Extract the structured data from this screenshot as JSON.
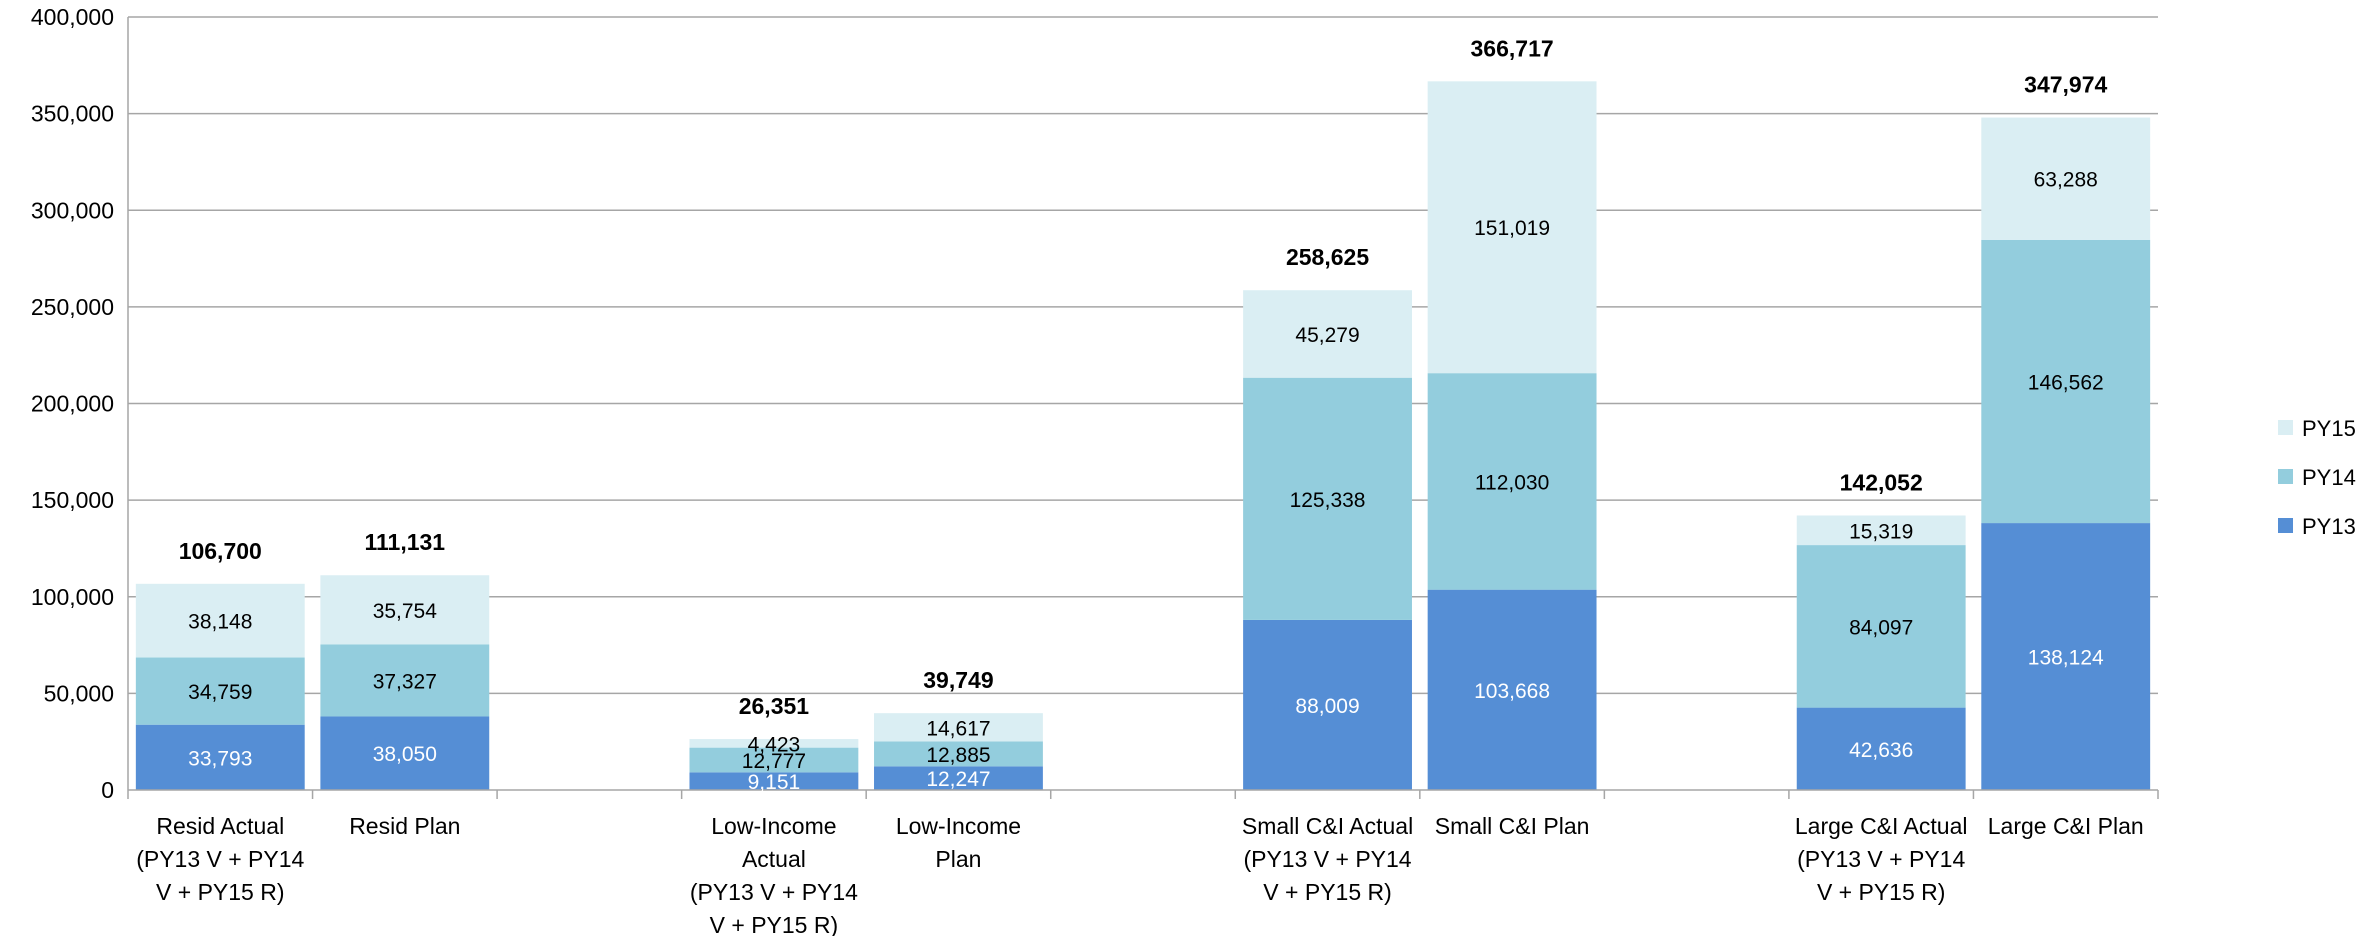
{
  "chart_data": {
    "type": "bar",
    "stacked": true,
    "title": "",
    "xlabel": "",
    "ylabel": "",
    "ylim": [
      0,
      400000
    ],
    "yticks": [
      0,
      50000,
      100000,
      150000,
      200000,
      250000,
      300000,
      350000,
      400000
    ],
    "ytick_labels": [
      "0",
      "50,000",
      "100,000",
      "150,000",
      "200,000",
      "250,000",
      "300,000",
      "350,000",
      "400,000"
    ],
    "grid": true,
    "legend_position": "right",
    "categories": [
      "Resid Actual (PY13 V + PY14 V + PY15 R)",
      "Resid Plan",
      "",
      "Low-Income Actual (PY13 V + PY14 V + PY15 R)",
      "Low-Income Plan",
      "",
      "Small C&I Actual (PY13 V + PY14 V + PY15 R)",
      "Small C&I Plan",
      "",
      "Large C&I Actual (PY13 V + PY14 V + PY15 R)",
      "Large C&I Plan"
    ],
    "category_lines": [
      [
        "Resid Actual",
        "(PY13 V + PY14",
        "V + PY15 R)"
      ],
      [
        "Resid Plan"
      ],
      [],
      [
        "Low-Income",
        "Actual",
        "(PY13 V + PY14",
        "V + PY15 R)"
      ],
      [
        "Low-Income",
        "Plan"
      ],
      [],
      [
        "Small C&I Actual",
        "(PY13 V + PY14",
        "V + PY15 R)"
      ],
      [
        "Small C&I Plan"
      ],
      [],
      [
        "Large C&I Actual",
        "(PY13 V + PY14",
        "V + PY15 R)"
      ],
      [
        "Large C&I Plan"
      ]
    ],
    "series": [
      {
        "name": "PY13",
        "color": "#558ED5",
        "label_color": "#ffffff",
        "values": [
          33793,
          38050,
          null,
          9151,
          12247,
          null,
          88009,
          103668,
          null,
          42636,
          138124
        ],
        "labels": [
          "33,793",
          "38,050",
          "",
          "9,151",
          "12,247",
          "",
          "88,009",
          "103,668",
          "",
          "42,636",
          "138,124"
        ]
      },
      {
        "name": "PY14",
        "color": "#93CDDD",
        "label_color": "#000000",
        "values": [
          34759,
          37327,
          null,
          12777,
          12885,
          null,
          125338,
          112030,
          null,
          84097,
          146562
        ],
        "labels": [
          "34,759",
          "37,327",
          "",
          "12,777",
          "12,885",
          "",
          "125,338",
          "112,030",
          "",
          "84,097",
          "146,562"
        ]
      },
      {
        "name": "PY15",
        "color": "#DAEEF3",
        "label_color": "#000000",
        "values": [
          38148,
          35754,
          null,
          4423,
          14617,
          null,
          45279,
          151019,
          null,
          15319,
          63288
        ],
        "labels": [
          "38,148",
          "35,754",
          "",
          "4,423",
          "14,617",
          "",
          "45,279",
          "151,019",
          "",
          "15,319",
          "63,288"
        ]
      }
    ],
    "totals": [
      106700,
      111131,
      null,
      26351,
      39749,
      null,
      258625,
      366717,
      null,
      142052,
      347974
    ],
    "total_labels": [
      "106,700",
      "111,131",
      "",
      "26,351",
      "39,749",
      "",
      "258,625",
      "366,717",
      "",
      "142,052",
      "347,974"
    ],
    "legend_order": [
      "PY15",
      "PY14",
      "PY13"
    ]
  }
}
